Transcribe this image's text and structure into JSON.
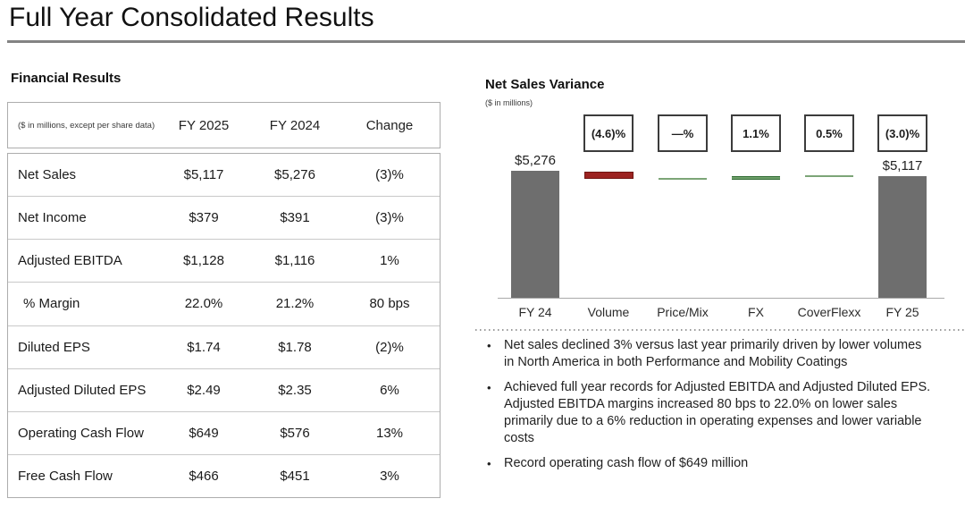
{
  "header": {
    "title": "Full Year Consolidated Results"
  },
  "financial_results": {
    "heading": "Financial Results",
    "unit_note": "($ in millions, except per share data)",
    "columns": [
      "FY 2025",
      "FY 2024",
      "Change"
    ],
    "rows": [
      {
        "label": "Net Sales",
        "fy2025": "$5,117",
        "fy2024": "$5,276",
        "change": "(3)%",
        "indent": false
      },
      {
        "label": "Net Income",
        "fy2025": "$379",
        "fy2024": "$391",
        "change": "(3)%",
        "indent": false
      },
      {
        "label": "Adjusted EBITDA",
        "fy2025": "$1,128",
        "fy2024": "$1,116",
        "change": "1%",
        "indent": false
      },
      {
        "label": "% Margin",
        "fy2025": "22.0%",
        "fy2024": "21.2%",
        "change": "80 bps",
        "indent": true
      },
      {
        "label": "Diluted EPS",
        "fy2025": "$1.74",
        "fy2024": "$1.78",
        "change": "(2)%",
        "indent": false
      },
      {
        "label": "Adjusted Diluted EPS",
        "fy2025": "$2.49",
        "fy2024": "$2.35",
        "change": "6%",
        "indent": false
      },
      {
        "label": "Operating Cash Flow",
        "fy2025": "$649",
        "fy2024": "$576",
        "change": "13%",
        "indent": false
      },
      {
        "label": "Free Cash Flow",
        "fy2025": "$466",
        "fy2024": "$451",
        "change": "3%",
        "indent": false
      }
    ]
  },
  "chart": {
    "heading": "Net Sales Variance",
    "unit_note": "($ in millions)"
  },
  "chart_data": {
    "type": "bar",
    "subtype": "waterfall",
    "title": "Net Sales Variance",
    "unit": "$ in millions",
    "categories": [
      "FY 24",
      "Volume",
      "Price/Mix",
      "FX",
      "CoverFlexx",
      "FY 25"
    ],
    "columns": [
      {
        "category": "FY 24",
        "value": 5276,
        "value_label": "$5,276",
        "variance_label": "",
        "role": "total",
        "color": "#6e6e6e"
      },
      {
        "category": "Volume",
        "value": -4.6,
        "value_label": "",
        "variance_label": "(4.6)%",
        "role": "neg",
        "color": "#9c2321"
      },
      {
        "category": "Price/Mix",
        "value": 0.0,
        "value_label": "",
        "variance_label": "—%",
        "role": "neutral",
        "color": "#7ca577"
      },
      {
        "category": "FX",
        "value": 1.1,
        "value_label": "",
        "variance_label": "1.1%",
        "role": "pos",
        "color": "#2f6a31"
      },
      {
        "category": "CoverFlexx",
        "value": 0.5,
        "value_label": "",
        "variance_label": "0.5%",
        "role": "neutral",
        "color": "#7ca577"
      },
      {
        "category": "FY 25",
        "value": 5117,
        "value_label": "$5,117",
        "variance_label": "(3.0)%",
        "role": "total",
        "color": "#6e6e6e"
      }
    ],
    "legend": false,
    "gridlines": false,
    "total_change_percent": "(3.0)%"
  },
  "bullets": [
    "Net sales declined 3% versus last year primarily driven by lower volumes in North America in both Performance and Mobility Coatings",
    "Achieved full year records for Adjusted EBITDA and Adjusted Diluted EPS. Adjusted EBITDA margins increased 80 bps to 22.0% on lower sales primarily due to a 6% reduction in operating expenses and lower variable costs",
    "Record operating cash flow of $649 million"
  ]
}
